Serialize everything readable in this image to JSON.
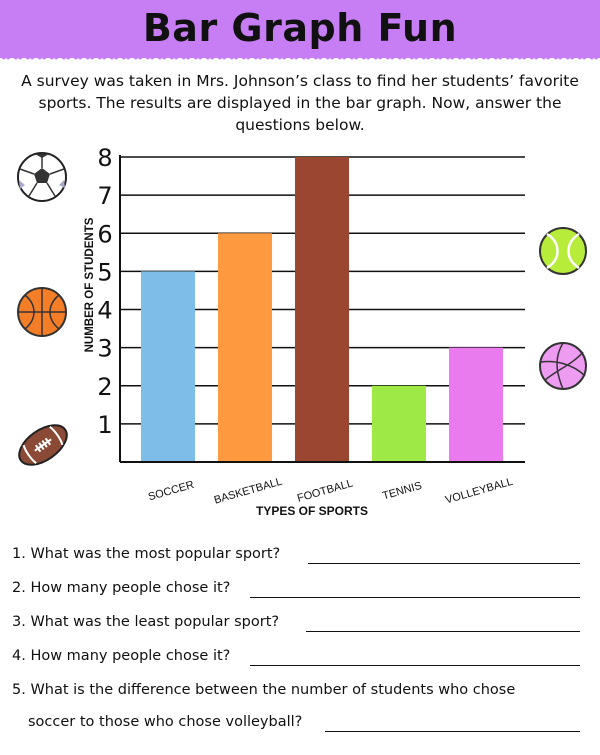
{
  "header": {
    "title": "Bar Graph Fun"
  },
  "intro": "A survey was taken in Mrs. Johnson’s class to find her students’ favorite sports. The results are displayed in the bar graph. Now, answer the questions below.",
  "colors": {
    "banner": "#c77ef5",
    "soccer": "#7dbde8",
    "basketball": "#ff9a40",
    "football": "#9b4630",
    "tennis": "#9ee945",
    "volleyball": "#ea7bee"
  },
  "icons": [
    "soccer-ball-icon",
    "basketball-icon",
    "football-icon",
    "tennis-ball-icon",
    "volleyball-icon"
  ],
  "chart_data": {
    "type": "bar",
    "categories": [
      "SOCCER",
      "BASKETBALL",
      "FOOTBALL",
      "TENNIS",
      "VOLLEYBALL"
    ],
    "values": [
      5,
      6,
      8,
      2,
      3
    ],
    "yticks": [
      1,
      2,
      3,
      4,
      5,
      6,
      7,
      8
    ],
    "ylim": [
      0,
      8
    ],
    "xlabel": "TYPES OF SPORTS",
    "ylabel": "NUMBER OF STUDENTS",
    "grid": true
  },
  "questions": [
    {
      "text": "1.  What was the most popular sport?"
    },
    {
      "text": "2. How many people chose it?"
    },
    {
      "text": "3. What was the least popular sport?"
    },
    {
      "text": "4. How many people chose it?"
    },
    {
      "text": "5. What is the difference between the number of students who chose"
    }
  ],
  "question5_continued": "soccer to those who chose volleyball?"
}
